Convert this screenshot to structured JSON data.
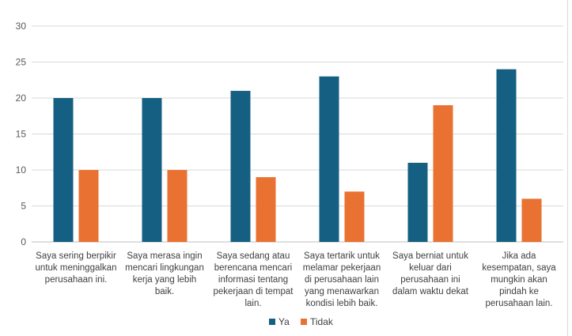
{
  "chart_data": {
    "type": "bar",
    "title": "",
    "xlabel": "",
    "ylabel": "",
    "ylim": [
      0,
      30
    ],
    "yticks": [
      0,
      5,
      10,
      15,
      20,
      25,
      30
    ],
    "grid": true,
    "legend_position": "bottom",
    "categories": [
      [
        "Saya sering berpikir",
        "untuk meninggalkan",
        "perusahaan ini."
      ],
      [
        "Saya merasa ingin",
        "mencari lingkungan",
        "kerja yang lebih",
        "baik."
      ],
      [
        "Saya sedang atau",
        "berencana mencari",
        "informasi tentang",
        "pekerjaan di tempat",
        "lain."
      ],
      [
        "Saya tertarik untuk",
        "melamar pekerjaan",
        "di perusahaan lain",
        "yang menawarkan",
        "kondisi lebih baik."
      ],
      [
        "Saya berniat untuk",
        "keluar dari",
        "perusahaan ini",
        "dalam waktu dekat"
      ],
      [
        "Jika ada",
        "kesempatan, saya",
        "mungkin akan",
        "pindah ke",
        "perusahaan lain."
      ]
    ],
    "series": [
      {
        "name": "Ya",
        "color": "#156082",
        "values": [
          20,
          20,
          21,
          23,
          11,
          24
        ]
      },
      {
        "name": "Tidak",
        "color": "#E97132",
        "values": [
          10,
          10,
          9,
          7,
          19,
          6
        ]
      }
    ]
  }
}
